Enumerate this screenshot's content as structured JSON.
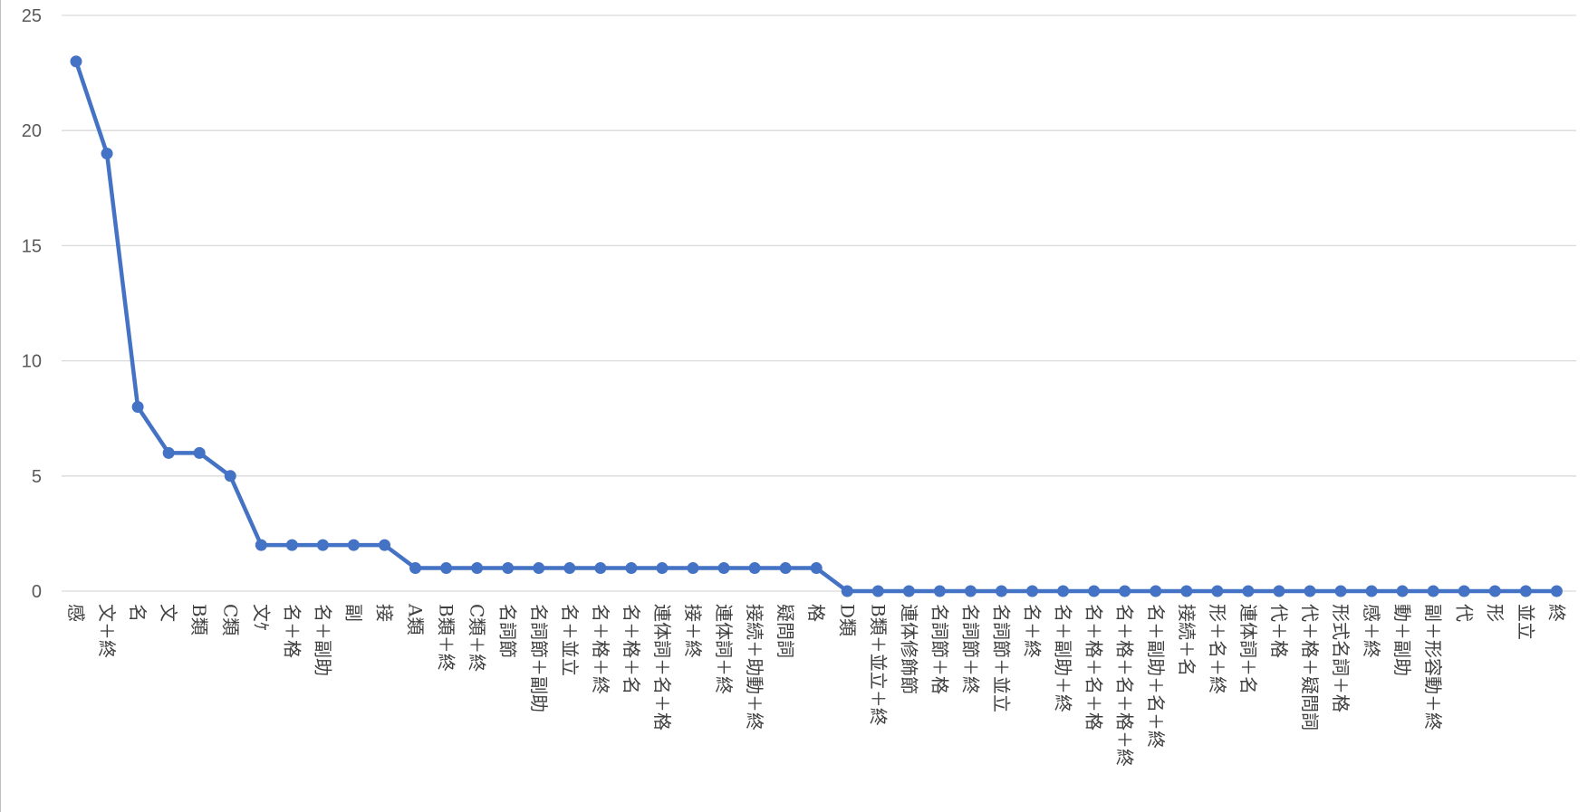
{
  "chart_data": {
    "type": "line",
    "title": "",
    "xlabel": "",
    "ylabel": "",
    "ylim": [
      0,
      25
    ],
    "yticks": [
      0,
      5,
      10,
      15,
      20,
      25
    ],
    "grid": true,
    "legend": "none",
    "line_color": "#4472c4",
    "categories": [
      "感",
      "文＋終",
      "名",
      "文",
      "B類",
      "C類",
      "文ｹ",
      "名＋格",
      "名＋副助",
      "副",
      "接",
      "A類",
      "B類＋終",
      "C類＋終",
      "名詞節",
      "名詞節＋副助",
      "名＋並立",
      "名＋格＋終",
      "名＋格＋名",
      "連体詞＋名＋格",
      "接＋終",
      "連体詞＋終",
      "接続＋助動＋終",
      "疑問詞",
      "格",
      "D類",
      "B類＋並立＋終",
      "連体修飾節",
      "名詞節＋格",
      "名詞節＋終",
      "名詞節＋並立",
      "名＋終",
      "名＋副助＋終",
      "名＋格＋名＋格",
      "名＋格＋名＋格＋終",
      "名＋副助＋名＋終",
      "接続＋名",
      "形＋名＋終",
      "連体詞＋名",
      "代＋格",
      "代＋格＋疑問詞",
      "形式名詞＋格",
      "感＋終",
      "動＋副助",
      "副＋形容動＋終",
      "代",
      "形",
      "並立",
      "終"
    ],
    "values": [
      23,
      19,
      8,
      6,
      6,
      5,
      2,
      2,
      2,
      2,
      2,
      1,
      1,
      1,
      1,
      1,
      1,
      1,
      1,
      1,
      1,
      1,
      1,
      1,
      1,
      0,
      0,
      0,
      0,
      0,
      0,
      0,
      0,
      0,
      0,
      0,
      0,
      0,
      0,
      0,
      0,
      0,
      0,
      0,
      0,
      0,
      0,
      0,
      0
    ]
  }
}
